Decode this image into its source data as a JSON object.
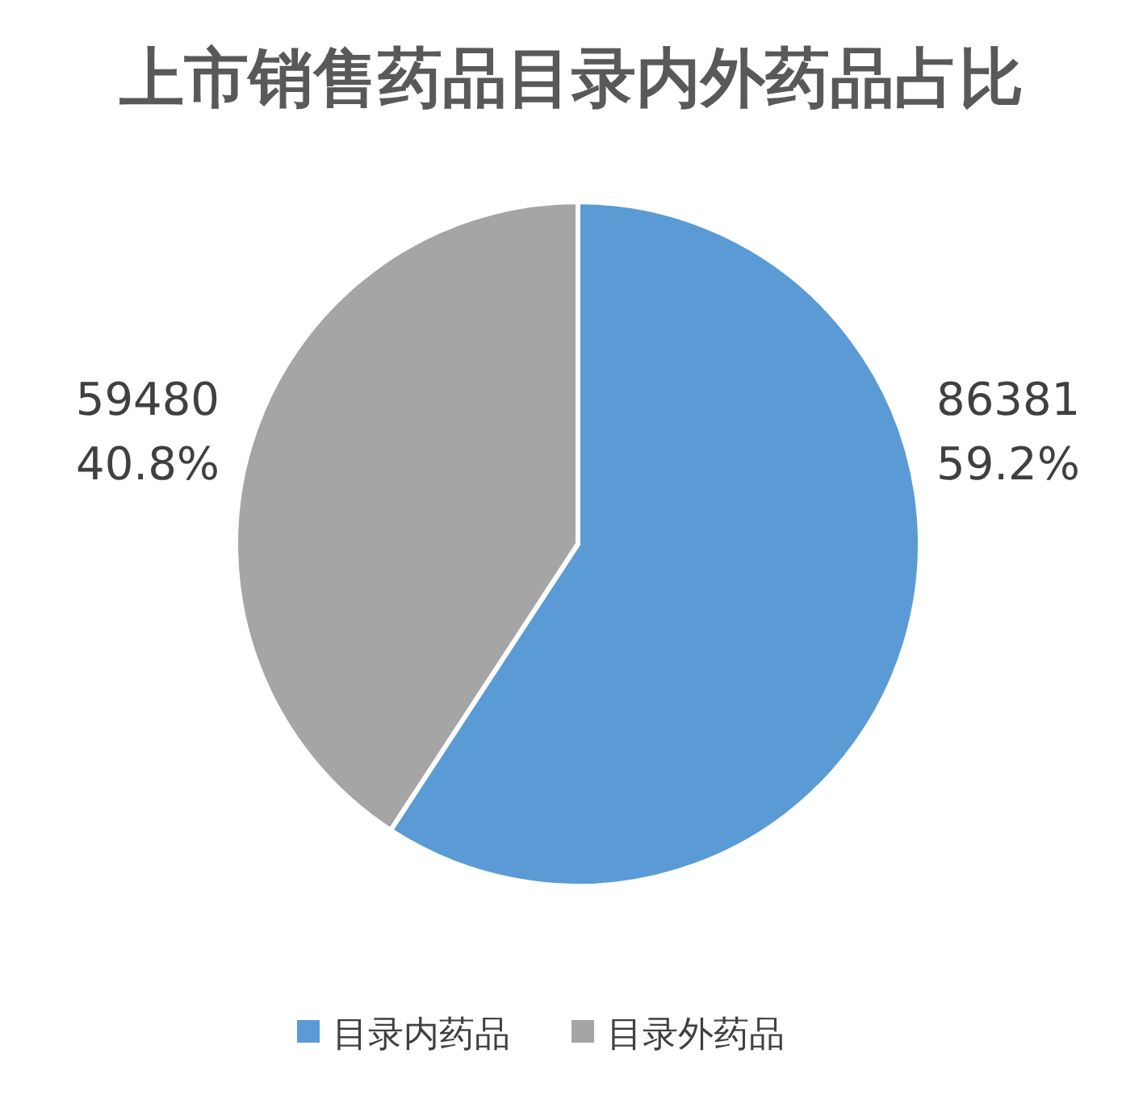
{
  "chart_data": {
    "type": "pie",
    "title": "上市销售药品目录内外药品占比",
    "categories": [
      "目录内药品",
      "目录外药品"
    ],
    "values": [
      86381,
      59480
    ],
    "colors": [
      "#5b9bd5",
      "#a5a5a5"
    ],
    "value_labels": [
      "86381\n59.2%",
      "59480\n40.8%"
    ],
    "legend": "bottom"
  }
}
